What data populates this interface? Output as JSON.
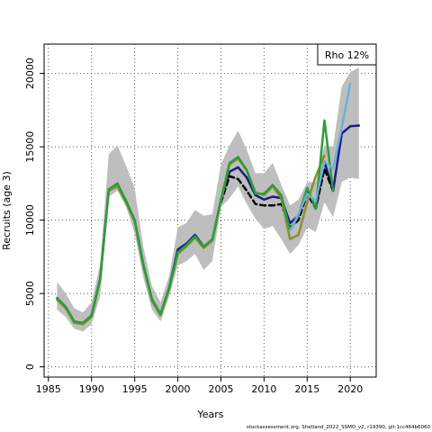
{
  "chart_data": {
    "type": "line",
    "xlabel": "Years",
    "ylabel": "Recruits (age 3)",
    "xlim": [
      1984.5,
      2023
    ],
    "ylim": [
      -700,
      22000
    ],
    "xticks": [
      1985,
      1990,
      1995,
      2000,
      2005,
      2010,
      2015,
      2020
    ],
    "yticks": [
      0,
      5000,
      10000,
      15000,
      20000
    ],
    "grid": true,
    "legend": {
      "position": "top-right",
      "text": "Rho 12%"
    },
    "footer": "stockassessment.org, Shetland_2022_SSMO_v2, r19390, git:1cc464b6060",
    "confidence_band": {
      "color": "#bebebe",
      "x": [
        1986,
        1987,
        1988,
        1989,
        1990,
        1991,
        1992,
        1993,
        1994,
        1995,
        1996,
        1997,
        1998,
        1999,
        2000,
        2001,
        2002,
        2003,
        2004,
        2005,
        2006,
        2007,
        2008,
        2009,
        2010,
        2011,
        2012,
        2013,
        2014,
        2015,
        2016,
        2017,
        2018,
        2019,
        2020,
        2021
      ],
      "upper": [
        5800,
        5000,
        4000,
        3700,
        4400,
        7000,
        14500,
        15100,
        13700,
        12200,
        8200,
        5500,
        4400,
        6200,
        9500,
        9800,
        10700,
        10300,
        10400,
        13800,
        15100,
        16100,
        14800,
        13200,
        13200,
        13900,
        12400,
        11000,
        11400,
        12600,
        12600,
        15100,
        15000,
        19100,
        20100,
        20400
      ],
      "lower": [
        3900,
        3400,
        2600,
        2400,
        2900,
        4800,
        11600,
        12000,
        10900,
        9100,
        6100,
        3900,
        3100,
        4800,
        6900,
        7200,
        7700,
        6600,
        7200,
        10900,
        11500,
        12300,
        11100,
        10100,
        9400,
        9600,
        8700,
        7700,
        8300,
        9500,
        9200,
        11200,
        10200,
        12600,
        12900,
        12800
      ]
    },
    "series": [
      {
        "color": "#1a1a8c",
        "dash": "solid",
        "x": [
          1986,
          1987,
          1988,
          1989,
          1990,
          1991,
          1992,
          1993,
          1994,
          1995,
          1996,
          1997,
          1998,
          1999,
          2000,
          2001,
          2002,
          2003,
          2004,
          2005,
          2006,
          2007,
          2008,
          2009,
          2010,
          2011,
          2012,
          2013,
          2014,
          2015,
          2016,
          2017,
          2018,
          2019,
          2020,
          2021
        ],
        "values": [
          4600,
          4000,
          3100,
          2900,
          3500,
          6000,
          12100,
          12400,
          11300,
          10000,
          7000,
          4600,
          3600,
          5400,
          8000,
          8400,
          9000,
          8200,
          8600,
          11400,
          13300,
          13600,
          12900,
          11700,
          11400,
          11600,
          11500,
          9800,
          10300,
          12100,
          10800,
          14000,
          12000,
          15900,
          16400,
          16450
        ]
      },
      {
        "color": "#000000",
        "dash": "dashed",
        "x": [
          2005,
          2006,
          2007,
          2008,
          2009,
          2010,
          2011,
          2012,
          2013,
          2014,
          2015,
          2016,
          2017,
          2018
        ],
        "values": [
          11200,
          13000,
          12800,
          12000,
          11100,
          11000,
          11000,
          11100,
          9500,
          10000,
          11800,
          10800,
          13500,
          12000
        ]
      },
      {
        "color": "#8e8e2e",
        "dash": "solid",
        "x": [
          1986,
          1987,
          1988,
          1989,
          1990,
          1991,
          1992,
          1993,
          1994,
          1995,
          1996,
          1997,
          1998,
          1999,
          2000,
          2001,
          2002,
          2003,
          2004,
          2005,
          2006,
          2007,
          2008,
          2009,
          2010,
          2011,
          2012,
          2013,
          2014,
          2015,
          2016,
          2017
        ],
        "values": [
          4600,
          4000,
          3000,
          2900,
          3400,
          5900,
          12000,
          12300,
          11200,
          9900,
          6900,
          4500,
          3500,
          5300,
          7700,
          8200,
          8800,
          8100,
          8600,
          11300,
          13800,
          14200,
          13400,
          11900,
          11700,
          12300,
          11500,
          8700,
          9000,
          11200,
          13000,
          14400
        ]
      },
      {
        "color": "#2a9e3a",
        "dash": "solid",
        "x": [
          1986,
          1987,
          1988,
          1989,
          1990,
          1991,
          1992,
          1993,
          1994,
          1995,
          1996,
          1997,
          1998,
          1999,
          2000,
          2001,
          2002,
          2003,
          2004,
          2005,
          2006,
          2007,
          2008,
          2009,
          2010,
          2011,
          2012,
          2013,
          2014,
          2015,
          2016,
          2017,
          2018
        ],
        "values": [
          4700,
          4100,
          3100,
          3000,
          3500,
          6000,
          12100,
          12500,
          11300,
          10000,
          7000,
          4600,
          3600,
          5400,
          7800,
          8300,
          8900,
          8200,
          8700,
          11400,
          13900,
          14300,
          13400,
          11800,
          11800,
          12400,
          11700,
          9300,
          10300,
          12200,
          10800,
          16800,
          12000
        ]
      },
      {
        "color": "#6ab0d8",
        "dash": "solid",
        "x": [
          2013,
          2014,
          2015,
          2016,
          2017,
          2018,
          2019,
          2020
        ],
        "values": [
          9300,
          10400,
          11800,
          11300,
          14000,
          13500,
          16300,
          19300
        ]
      }
    ]
  }
}
